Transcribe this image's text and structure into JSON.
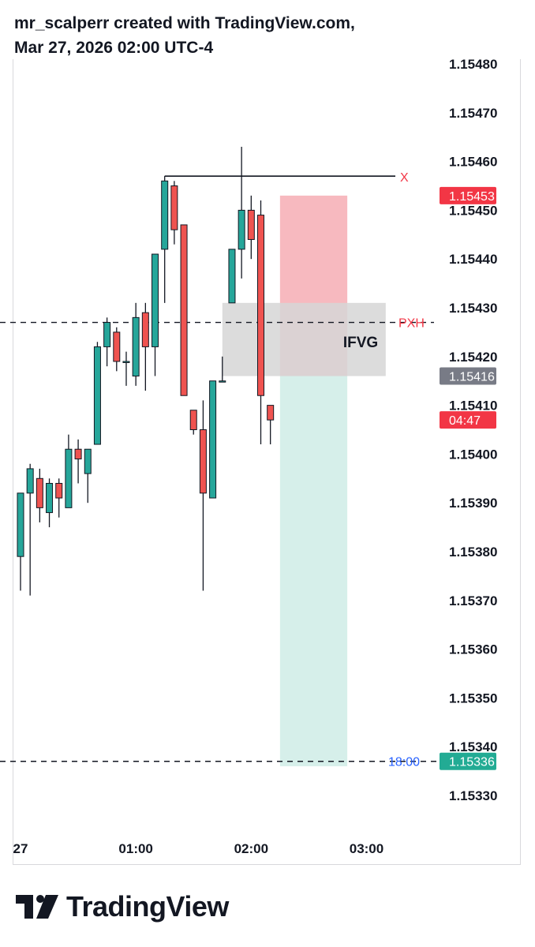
{
  "header": {
    "line1": "mr_scalperr created with TradingView.com,",
    "line2": "Mar 27, 2026 02:00 UTC-4"
  },
  "footer": {
    "brand": "TradingView"
  },
  "colors": {
    "bull": "#26a69a",
    "bear": "#ef5350",
    "stop_zone": "#f7b9bf",
    "target_zone": "#d6efea",
    "ifvg_box": "#d6d6d6",
    "marker_red": "#f23645",
    "marker_blue": "#2962ff",
    "marker_gray": "#787b86",
    "marker_green": "#22ab94"
  },
  "chart_data": {
    "type": "candlestick",
    "instrument_period": "5m",
    "y_axis": {
      "ticks": [
        "1.15480",
        "1.15470",
        "1.15460",
        "1.15450",
        "1.15440",
        "1.15430",
        "1.15420",
        "1.15410",
        "1.15400",
        "1.15390",
        "1.15380",
        "1.15370",
        "1.15360",
        "1.15350",
        "1.15340",
        "1.15330"
      ]
    },
    "x_axis": {
      "ticks": [
        {
          "label": "27",
          "time": "00:00"
        },
        {
          "label": "01:00",
          "time": "01:00"
        },
        {
          "label": "02:00",
          "time": "02:00"
        },
        {
          "label": "03:00",
          "time": "03:00"
        }
      ]
    },
    "candles": [
      {
        "t": "00:00",
        "o": 1.15379,
        "h": 1.15392,
        "l": 1.15372,
        "c": 1.15392
      },
      {
        "t": "00:05",
        "o": 1.15392,
        "h": 1.15398,
        "l": 1.15371,
        "c": 1.15397
      },
      {
        "t": "00:10",
        "o": 1.15395,
        "h": 1.15397,
        "l": 1.15386,
        "c": 1.15389
      },
      {
        "t": "00:15",
        "o": 1.15388,
        "h": 1.15395,
        "l": 1.15385,
        "c": 1.15394
      },
      {
        "t": "00:20",
        "o": 1.15394,
        "h": 1.15395,
        "l": 1.15387,
        "c": 1.15391
      },
      {
        "t": "00:25",
        "o": 1.15389,
        "h": 1.15404,
        "l": 1.15389,
        "c": 1.15401
      },
      {
        "t": "00:30",
        "o": 1.15401,
        "h": 1.15403,
        "l": 1.15394,
        "c": 1.15399
      },
      {
        "t": "00:35",
        "o": 1.15396,
        "h": 1.15401,
        "l": 1.1539,
        "c": 1.15401
      },
      {
        "t": "00:40",
        "o": 1.15402,
        "h": 1.15423,
        "l": 1.15402,
        "c": 1.15422
      },
      {
        "t": "00:45",
        "o": 1.15422,
        "h": 1.15428,
        "l": 1.15418,
        "c": 1.15427
      },
      {
        "t": "00:50",
        "o": 1.15425,
        "h": 1.15426,
        "l": 1.15417,
        "c": 1.15419
      },
      {
        "t": "00:55",
        "o": 1.15419,
        "h": 1.15421,
        "l": 1.15414,
        "c": 1.15419
      },
      {
        "t": "01:00",
        "o": 1.15416,
        "h": 1.15431,
        "l": 1.15414,
        "c": 1.15428
      },
      {
        "t": "01:05",
        "o": 1.15429,
        "h": 1.15431,
        "l": 1.15413,
        "c": 1.15422
      },
      {
        "t": "01:10",
        "o": 1.15422,
        "h": 1.15441,
        "l": 1.15416,
        "c": 1.15441
      },
      {
        "t": "01:15",
        "o": 1.15442,
        "h": 1.15457,
        "l": 1.15431,
        "c": 1.15456
      },
      {
        "t": "01:20",
        "o": 1.15455,
        "h": 1.15456,
        "l": 1.15443,
        "c": 1.15446
      },
      {
        "t": "01:25",
        "o": 1.15447,
        "h": 1.15447,
        "l": 1.15412,
        "c": 1.15412
      },
      {
        "t": "01:30",
        "o": 1.15409,
        "h": 1.15409,
        "l": 1.15404,
        "c": 1.15405
      },
      {
        "t": "01:35",
        "o": 1.15405,
        "h": 1.15411,
        "l": 1.15372,
        "c": 1.15392
      },
      {
        "t": "01:40",
        "o": 1.15391,
        "h": 1.15415,
        "l": 1.15391,
        "c": 1.15415
      },
      {
        "t": "01:45",
        "o": 1.15415,
        "h": 1.1542,
        "l": 1.15415,
        "c": 1.15415
      },
      {
        "t": "01:50",
        "o": 1.15431,
        "h": 1.15442,
        "l": 1.15431,
        "c": 1.15442
      },
      {
        "t": "01:55",
        "o": 1.15442,
        "h": 1.15463,
        "l": 1.15436,
        "c": 1.1545
      },
      {
        "t": "02:00",
        "o": 1.1545,
        "h": 1.15453,
        "l": 1.1544,
        "c": 1.15444
      },
      {
        "t": "02:05",
        "o": 1.15449,
        "h": 1.15452,
        "l": 1.15402,
        "c": 1.15412
      },
      {
        "t": "02:10",
        "o": 1.1541,
        "h": 1.1541,
        "l": 1.15402,
        "c": 1.15407
      }
    ],
    "annotations": {
      "high_line": {
        "price": 1.15457,
        "from": "01:15",
        "to": "03:15",
        "label": "X"
      },
      "pxh_line": {
        "price": 1.15427,
        "label": "PXH"
      },
      "session_line": {
        "price": 1.15337,
        "label": "18:00"
      },
      "ifvg_box": {
        "label": "IFVG",
        "top": 1.15431,
        "bottom": 1.15416,
        "from": "01:45",
        "to": "03:10"
      },
      "position": {
        "entry": 1.15416,
        "stop": 1.15453,
        "target": 1.15336,
        "from": "02:15",
        "to": "02:50"
      },
      "price_badges": [
        {
          "text": "1.15453",
          "price": 1.15453,
          "color": "red"
        },
        {
          "text": "1.15416",
          "price": 1.15416,
          "color": "gray"
        },
        {
          "text": "04:47",
          "price": 1.15407,
          "color": "red"
        },
        {
          "text": "1.15336",
          "price": 1.15337,
          "color": "green"
        }
      ]
    }
  }
}
